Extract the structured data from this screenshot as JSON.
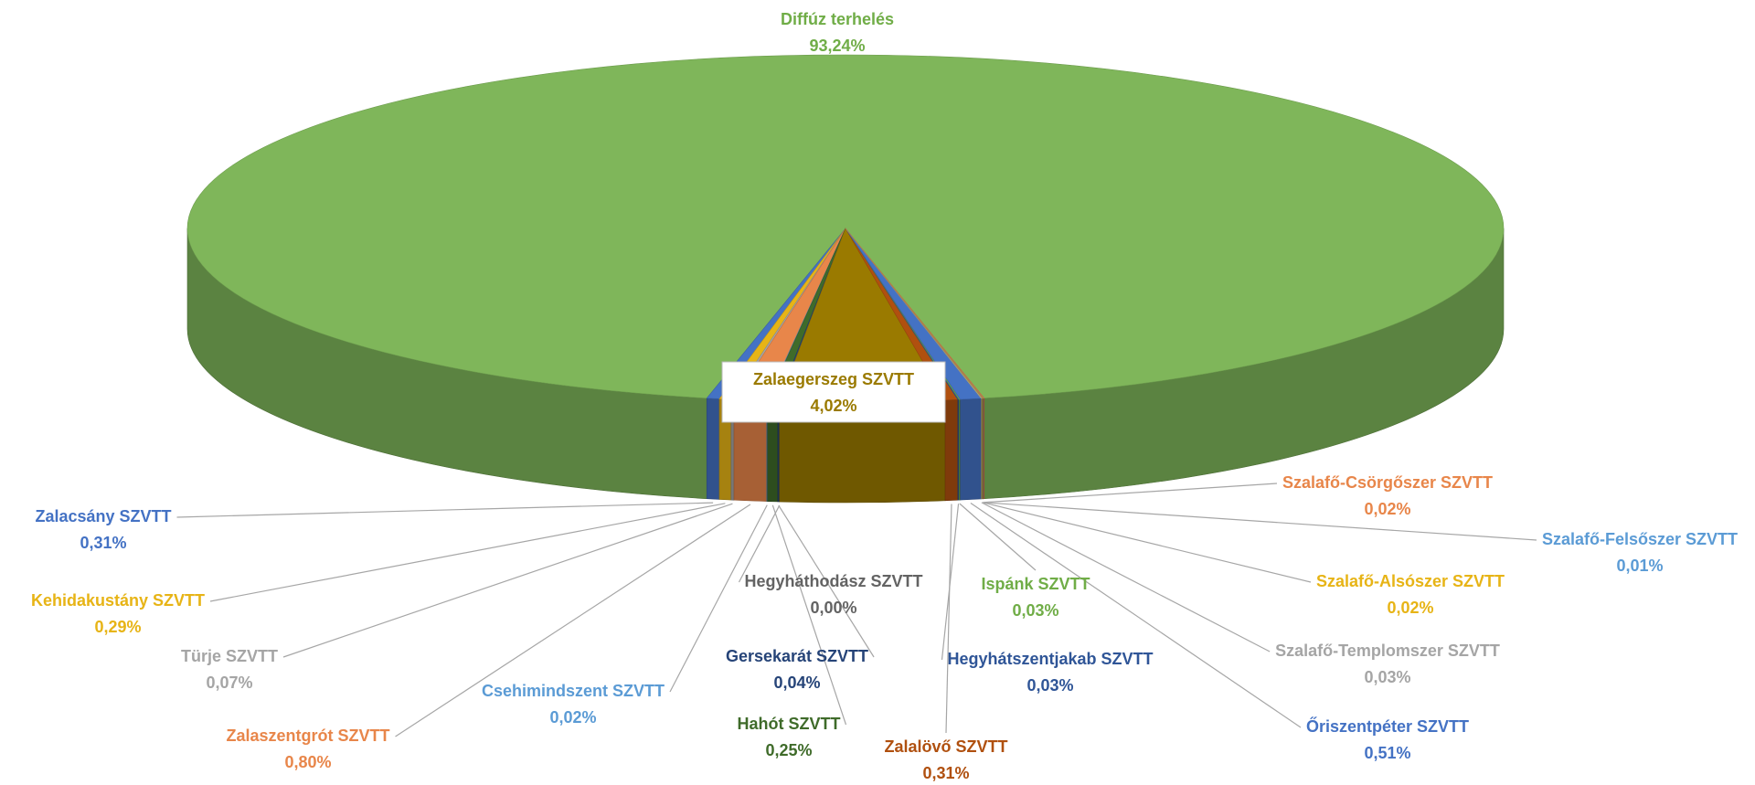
{
  "chart_data": {
    "type": "pie",
    "three_d": true,
    "categories": [
      "Diffúz terhelés",
      "Zalacsány SZVTT",
      "Kehidakustány SZVTT",
      "Türje SZVTT",
      "Zalaszentgrót SZVTT",
      "Csehimindszent SZVTT",
      "Hahót SZVTT",
      "Gersekarát SZVTT",
      "Hegyháthodász SZVTT",
      "Zalaegerszeg SZVTT",
      "Zalalövő SZVTT",
      "Hegyhátszentjakab SZVTT",
      "Ispánk SZVTT",
      "Őriszentpéter SZVTT",
      "Szalafő-Templomszer SZVTT",
      "Szalafő-Alsószer SZVTT",
      "Szalafő-Felsőszer SZVTT",
      "Szalafő-Csörgőszer SZVTT"
    ],
    "values": [
      93.24,
      0.31,
      0.29,
      0.07,
      0.8,
      0.02,
      0.25,
      0.04,
      0.0,
      4.02,
      0.31,
      0.03,
      0.03,
      0.51,
      0.03,
      0.02,
      0.01,
      0.02
    ],
    "value_labels": [
      "93,24%",
      "0,31%",
      "0,29%",
      "0,07%",
      "0,80%",
      "0,02%",
      "0,25%",
      "0,04%",
      "0,00%",
      "4,02%",
      "0,31%",
      "0,03%",
      "0,03%",
      "0,51%",
      "0,03%",
      "0,02%",
      "0,01%",
      "0,02%"
    ],
    "colors": [
      "#7fb65a",
      "#4472c4",
      "#e7b416",
      "#a5a5a5",
      "#e8864a",
      "#5b9bd5",
      "#3f6b2a",
      "#264478",
      "#636363",
      "#9a7a00",
      "#b0500f",
      "#2f5597",
      "#70ad47",
      "#4472c4",
      "#a5a5a5",
      "#e7b416",
      "#5b9bd5",
      "#e8864a"
    ]
  }
}
